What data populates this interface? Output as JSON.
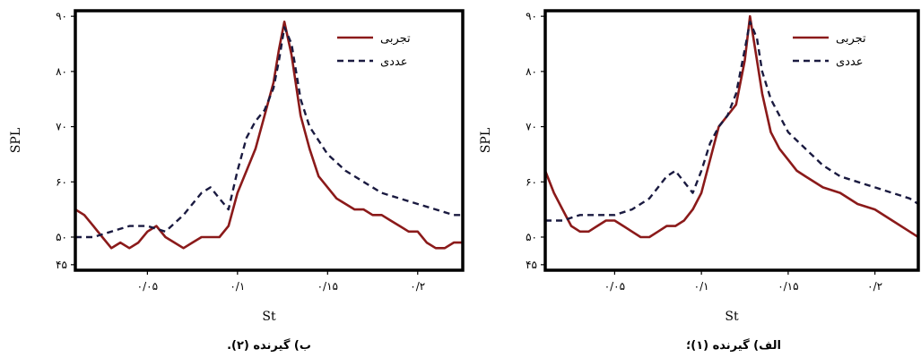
{
  "chart_data": [
    {
      "type": "line",
      "caption": "ب) گیرنده (۲).",
      "xlabel": "St",
      "ylabel": "SPL",
      "xlim": [
        0.01,
        0.225
      ],
      "ylim": [
        44,
        91
      ],
      "grid": false,
      "legend_position": "top-right",
      "x_ticks": [
        {
          "value": 0.05,
          "label": "۰/۰۵"
        },
        {
          "value": 0.1,
          "label": "۰/۱"
        },
        {
          "value": 0.15,
          "label": "۰/۱۵"
        },
        {
          "value": 0.2,
          "label": "۰/۲"
        }
      ],
      "y_ticks": [
        {
          "value": 45,
          "label": "۴۵"
        },
        {
          "value": 50,
          "label": "۵۰"
        },
        {
          "value": 60,
          "label": "۶۰"
        },
        {
          "value": 70,
          "label": "۷۰"
        },
        {
          "value": 80,
          "label": "۸۰"
        },
        {
          "value": 90,
          "label": "۹۰"
        }
      ],
      "series": [
        {
          "name": "تجربی",
          "color": "#8b1a1a",
          "style": "solid",
          "x": [
            0.01,
            0.015,
            0.02,
            0.025,
            0.03,
            0.035,
            0.04,
            0.045,
            0.05,
            0.055,
            0.06,
            0.065,
            0.07,
            0.075,
            0.08,
            0.085,
            0.09,
            0.095,
            0.1,
            0.105,
            0.11,
            0.115,
            0.12,
            0.123,
            0.126,
            0.13,
            0.135,
            0.14,
            0.145,
            0.15,
            0.155,
            0.16,
            0.165,
            0.17,
            0.175,
            0.18,
            0.185,
            0.19,
            0.195,
            0.2,
            0.205,
            0.21,
            0.215,
            0.22,
            0.225
          ],
          "values": [
            55,
            54,
            52,
            50,
            48,
            49,
            48,
            49,
            51,
            52,
            50,
            49,
            48,
            49,
            50,
            50,
            50,
            52,
            58,
            62,
            66,
            72,
            78,
            84,
            89,
            83,
            72,
            66,
            61,
            59,
            57,
            56,
            55,
            55,
            54,
            54,
            53,
            52,
            51,
            51,
            49,
            48,
            48,
            49,
            49
          ]
        },
        {
          "name": "عددی",
          "color": "#1a1a40",
          "style": "dashed",
          "x": [
            0.01,
            0.02,
            0.03,
            0.04,
            0.05,
            0.06,
            0.07,
            0.08,
            0.085,
            0.09,
            0.095,
            0.1,
            0.105,
            0.11,
            0.115,
            0.12,
            0.123,
            0.126,
            0.13,
            0.135,
            0.14,
            0.15,
            0.16,
            0.17,
            0.18,
            0.19,
            0.2,
            0.21,
            0.22,
            0.225
          ],
          "values": [
            50,
            50,
            51,
            52,
            52,
            51,
            54,
            58,
            59,
            57,
            55,
            62,
            68,
            71,
            73,
            77,
            82,
            88,
            85,
            75,
            70,
            65,
            62,
            60,
            58,
            57,
            56,
            55,
            54,
            54
          ]
        }
      ]
    },
    {
      "type": "line",
      "caption": "الف) گیرنده (۱)؛",
      "xlabel": "St",
      "ylabel": "SPL",
      "xlim": [
        0.01,
        0.225
      ],
      "ylim": [
        44,
        91
      ],
      "grid": false,
      "legend_position": "top-right",
      "x_ticks": [
        {
          "value": 0.05,
          "label": "۰/۰۵"
        },
        {
          "value": 0.1,
          "label": "۰/۱"
        },
        {
          "value": 0.15,
          "label": "۰/۱۵"
        },
        {
          "value": 0.2,
          "label": "۰/۲"
        }
      ],
      "y_ticks": [
        {
          "value": 45,
          "label": "۴۵"
        },
        {
          "value": 50,
          "label": "۵۰"
        },
        {
          "value": 60,
          "label": "۶۰"
        },
        {
          "value": 70,
          "label": "۷۰"
        },
        {
          "value": 80,
          "label": "۸۰"
        },
        {
          "value": 90,
          "label": "۹۰"
        }
      ],
      "series": [
        {
          "name": "تجربی",
          "color": "#8b1a1a",
          "style": "solid",
          "x": [
            0.01,
            0.015,
            0.02,
            0.025,
            0.03,
            0.035,
            0.04,
            0.045,
            0.05,
            0.055,
            0.06,
            0.065,
            0.07,
            0.075,
            0.08,
            0.085,
            0.09,
            0.095,
            0.1,
            0.105,
            0.11,
            0.115,
            0.12,
            0.125,
            0.128,
            0.132,
            0.135,
            0.14,
            0.145,
            0.15,
            0.155,
            0.16,
            0.17,
            0.18,
            0.19,
            0.2,
            0.21,
            0.22,
            0.225
          ],
          "values": [
            62,
            58,
            55,
            52,
            51,
            51,
            52,
            53,
            53,
            52,
            51,
            50,
            50,
            51,
            52,
            52,
            53,
            55,
            58,
            64,
            70,
            72,
            74,
            82,
            90,
            82,
            76,
            69,
            66,
            64,
            62,
            61,
            59,
            58,
            56,
            55,
            53,
            51,
            50
          ]
        },
        {
          "name": "عددی",
          "color": "#1a1a40",
          "style": "dashed",
          "x": [
            0.01,
            0.02,
            0.03,
            0.04,
            0.05,
            0.06,
            0.07,
            0.08,
            0.085,
            0.09,
            0.095,
            0.1,
            0.105,
            0.11,
            0.115,
            0.12,
            0.125,
            0.128,
            0.132,
            0.135,
            0.14,
            0.15,
            0.16,
            0.17,
            0.18,
            0.19,
            0.2,
            0.21,
            0.22,
            0.225
          ],
          "values": [
            53,
            53,
            54,
            54,
            54,
            55,
            57,
            61,
            62,
            60,
            58,
            62,
            67,
            70,
            72,
            76,
            84,
            89,
            86,
            80,
            75,
            69,
            66,
            63,
            61,
            60,
            59,
            58,
            57,
            56
          ]
        }
      ]
    }
  ]
}
